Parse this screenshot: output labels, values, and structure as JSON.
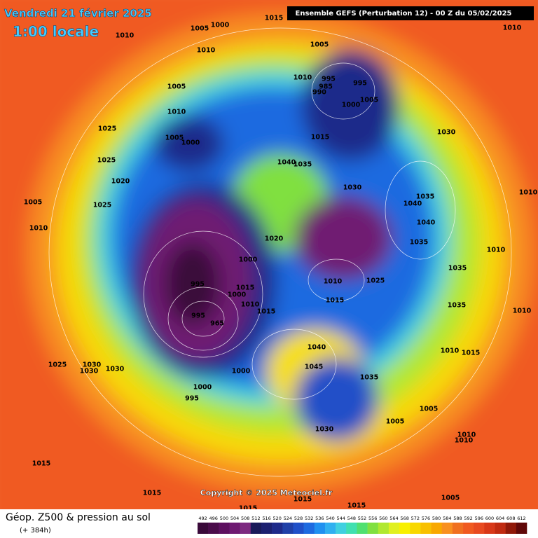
{
  "header": {
    "title": "Vendredi 21 février 2025",
    "subtitle": "1:00 locale",
    "run": "Ensemble GEFS  (Perturbation 12)  -  00 Z du 05/02/2025"
  },
  "map": {
    "copyright": "Copyright © 2025 Meteociel.fr",
    "pressure_labels": [
      1005,
      1000,
      1010,
      1015,
      1010,
      1010,
      1005,
      1010,
      995,
      985,
      990,
      995,
      1005,
      1000,
      1005,
      1010,
      1025,
      1005,
      1000,
      1015,
      1030,
      1025,
      1040,
      1035,
      1020,
      1030,
      1010,
      1035,
      1005,
      1025,
      1040,
      1040,
      1010,
      1020,
      1035,
      1010,
      1000,
      1035,
      995,
      1010,
      1025,
      1015,
      1000,
      1010,
      1015,
      1035,
      1015,
      1010,
      995,
      965,
      1040,
      1010,
      1015,
      1025,
      1030,
      1030,
      1030,
      1045,
      1000,
      1035,
      1000,
      995,
      1005,
      1005,
      1030,
      1010,
      1010,
      1015,
      1015,
      1015,
      1015,
      1015,
      1005
    ]
  },
  "legend": {
    "title": "Géop. Z500 & pression au sol",
    "lead": "(+ 384h)",
    "ticks": [
      492,
      496,
      500,
      504,
      508,
      512,
      516,
      520,
      524,
      528,
      532,
      536,
      540,
      544,
      548,
      552,
      556,
      560,
      564,
      568,
      572,
      576,
      580,
      584,
      588,
      592,
      596,
      600,
      604,
      608,
      612
    ],
    "colors": [
      "#3a0a3a",
      "#4b0c4b",
      "#5e1060",
      "#6f1a72",
      "#7d2a80",
      "#1a1a5a",
      "#1c2070",
      "#1e2a8a",
      "#2040a8",
      "#2050c8",
      "#1e6ae0",
      "#2090f0",
      "#30b0f0",
      "#40d0e0",
      "#40e0b0",
      "#50e070",
      "#80e040",
      "#b0e830",
      "#e0f020",
      "#f8f000",
      "#f8d800",
      "#f8c000",
      "#f8a800",
      "#f89020",
      "#f07020",
      "#f05a20",
      "#e84a20",
      "#d83818",
      "#c02a10",
      "#901808",
      "#600808"
    ]
  }
}
